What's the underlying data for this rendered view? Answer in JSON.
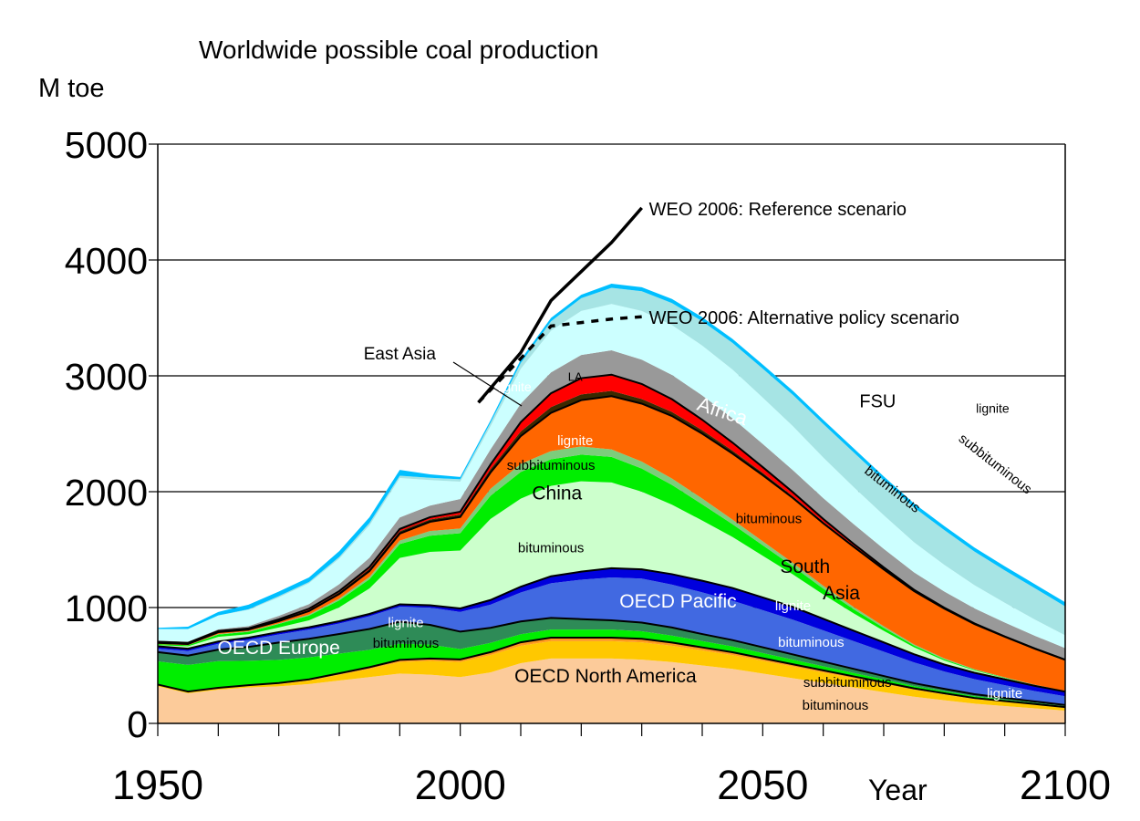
{
  "chart_data": {
    "type": "area",
    "stacked": true,
    "title": "Worldwide possible coal production",
    "ylabel": "M toe",
    "xlabel": "Year",
    "xlim": [
      1950,
      2100
    ],
    "ylim": [
      0,
      5000
    ],
    "x_ticks": [
      1950,
      2000,
      2050,
      2100
    ],
    "y_ticks": [
      0,
      1000,
      2000,
      3000,
      4000,
      5000
    ],
    "grid": "horizontal",
    "x": [
      1950,
      1955,
      1960,
      1965,
      1970,
      1975,
      1980,
      1985,
      1990,
      1995,
      2000,
      2005,
      2010,
      2015,
      2020,
      2025,
      2030,
      2035,
      2040,
      2045,
      2050,
      2055,
      2060,
      2065,
      2070,
      2075,
      2080,
      2085,
      2090,
      2095,
      2100
    ],
    "series": [
      {
        "id": "na-bituminous",
        "color": "#fccb9a",
        "values": [
          320,
          260,
          290,
          310,
          320,
          340,
          370,
          400,
          430,
          420,
          400,
          440,
          520,
          560,
          560,
          560,
          550,
          530,
          500,
          470,
          430,
          390,
          350,
          310,
          270,
          230,
          200,
          170,
          150,
          130,
          110
        ]
      },
      {
        "id": "na-subbituminous",
        "color": "#ffc800",
        "values": [
          10,
          10,
          12,
          15,
          20,
          30,
          50,
          70,
          100,
          120,
          130,
          150,
          150,
          150,
          150,
          150,
          150,
          140,
          130,
          120,
          110,
          100,
          90,
          80,
          70,
          60,
          50,
          40,
          35,
          30,
          25
        ]
      },
      {
        "id": "na-lignite",
        "color": "#ff9a1e",
        "values": [
          5,
          5,
          5,
          5,
          8,
          10,
          12,
          15,
          18,
          20,
          22,
          25,
          30,
          30,
          30,
          30,
          30,
          28,
          26,
          24,
          22,
          20,
          18,
          16,
          14,
          12,
          10,
          9,
          8,
          7,
          6
        ]
      },
      {
        "id": "eu-bituminous",
        "color": "#00ee00",
        "values": [
          200,
          230,
          230,
          210,
          200,
          190,
          170,
          150,
          140,
          120,
          90,
          80,
          70,
          70,
          70,
          70,
          65,
          60,
          55,
          50,
          45,
          40,
          35,
          30,
          25,
          20,
          18,
          15,
          12,
          10,
          8
        ]
      },
      {
        "id": "eu-lignite",
        "color": "#2e8b57",
        "values": [
          80,
          80,
          100,
          120,
          150,
          160,
          170,
          180,
          190,
          170,
          150,
          130,
          110,
          100,
          90,
          80,
          75,
          70,
          60,
          55,
          50,
          45,
          40,
          35,
          30,
          25,
          20,
          18,
          15,
          12,
          10
        ]
      },
      {
        "id": "pacific-bituminous",
        "color": "#4169e1",
        "values": [
          30,
          40,
          50,
          60,
          70,
          80,
          90,
          110,
          130,
          150,
          170,
          200,
          250,
          300,
          340,
          370,
          380,
          370,
          360,
          340,
          320,
          300,
          270,
          240,
          210,
          180,
          150,
          130,
          110,
          90,
          75
        ]
      },
      {
        "id": "pacific-lignite",
        "color": "#0000dd",
        "values": [
          20,
          20,
          20,
          20,
          20,
          20,
          20,
          20,
          20,
          20,
          30,
          40,
          50,
          60,
          70,
          80,
          80,
          90,
          100,
          110,
          110,
          110,
          100,
          90,
          80,
          70,
          60,
          55,
          50,
          45,
          40
        ]
      },
      {
        "id": "china-bituminous",
        "color": "#ccffcc",
        "values": [
          10,
          20,
          40,
          30,
          40,
          60,
          120,
          220,
          400,
          460,
          500,
          700,
          760,
          780,
          780,
          740,
          670,
          600,
          520,
          440,
          360,
          280,
          210,
          150,
          100,
          60,
          35,
          20,
          10,
          5,
          2
        ]
      },
      {
        "id": "china-subbituminous",
        "color": "#00ee00",
        "values": [
          10,
          10,
          20,
          20,
          30,
          40,
          60,
          80,
          120,
          140,
          150,
          200,
          230,
          230,
          230,
          220,
          200,
          170,
          140,
          110,
          90,
          70,
          50,
          35,
          25,
          15,
          10,
          6,
          4,
          2,
          1
        ]
      },
      {
        "id": "china-lignite",
        "color": "#7ccd7c",
        "values": [
          0,
          0,
          5,
          5,
          5,
          10,
          15,
          20,
          30,
          40,
          40,
          60,
          70,
          70,
          70,
          65,
          60,
          55,
          50,
          40,
          35,
          30,
          25,
          20,
          15,
          10,
          8,
          5,
          4,
          3,
          2
        ]
      },
      {
        "id": "south-asia",
        "color": "#ff6600",
        "values": [
          10,
          10,
          15,
          15,
          20,
          30,
          40,
          50,
          60,
          80,
          100,
          140,
          240,
          330,
          400,
          460,
          500,
          540,
          560,
          570,
          570,
          560,
          540,
          520,
          490,
          460,
          430,
          390,
          350,
          310,
          270
        ]
      },
      {
        "id": "east-asia-lignite",
        "color": "#3a2a00",
        "values": [
          5,
          5,
          5,
          5,
          10,
          10,
          15,
          20,
          20,
          20,
          20,
          30,
          40,
          50,
          50,
          45,
          40,
          35,
          30,
          25,
          20,
          15,
          12,
          10,
          8,
          6,
          4,
          3,
          2,
          1,
          1
        ]
      },
      {
        "id": "latin-america",
        "color": "#ff0000",
        "values": [
          5,
          5,
          5,
          5,
          5,
          10,
          10,
          15,
          20,
          20,
          25,
          40,
          80,
          120,
          140,
          140,
          130,
          110,
          90,
          70,
          50,
          35,
          25,
          15,
          10,
          6,
          4,
          2,
          1,
          1,
          0
        ]
      },
      {
        "id": "africa",
        "color": "#999999",
        "values": [
          10,
          10,
          15,
          20,
          30,
          40,
          60,
          80,
          100,
          100,
          110,
          130,
          160,
          180,
          200,
          210,
          210,
          210,
          210,
          210,
          200,
          190,
          180,
          170,
          160,
          150,
          140,
          130,
          120,
          110,
          100
        ]
      },
      {
        "id": "fsu-bituminous",
        "color": "#ccffff",
        "values": [
          100,
          110,
          120,
          140,
          160,
          180,
          220,
          280,
          340,
          220,
          150,
          200,
          300,
          360,
          380,
          400,
          420,
          430,
          430,
          420,
          400,
          380,
          350,
          320,
          290,
          260,
          230,
          200,
          170,
          140,
          110
        ]
      },
      {
        "id": "fsu-subbituminous",
        "color": "#a6e4e4",
        "values": [
          0,
          0,
          0,
          5,
          10,
          10,
          15,
          20,
          20,
          20,
          20,
          30,
          50,
          80,
          110,
          140,
          170,
          190,
          210,
          230,
          250,
          270,
          290,
          300,
          300,
          300,
          300,
          290,
          280,
          270,
          250
        ]
      },
      {
        "id": "fsu-lignite",
        "color": "#00bfff",
        "values": [
          10,
          20,
          30,
          40,
          40,
          40,
          50,
          50,
          50,
          30,
          20,
          20,
          30,
          30,
          30,
          35,
          35,
          35,
          35,
          35,
          35,
          35,
          35,
          35,
          35,
          35,
          35,
          35,
          35,
          35,
          35
        ]
      }
    ],
    "overlay_lines": [
      {
        "name": "WEO 2006: Reference scenario",
        "style": "solid",
        "x": [
          2003,
          2010,
          2015,
          2020,
          2025,
          2030
        ],
        "y": [
          2770,
          3200,
          3650,
          3900,
          4150,
          4450
        ]
      },
      {
        "name": "WEO 2006: Alternative policy scenario",
        "style": "dashed",
        "x": [
          2003,
          2010,
          2015,
          2020,
          2025,
          2030
        ],
        "y": [
          2770,
          3150,
          3430,
          3460,
          3490,
          3510
        ]
      }
    ],
    "annotations": [
      {
        "text": "East Asia",
        "x": 1990,
        "y": 3140,
        "color": "#000000",
        "size": 19
      },
      {
        "text": "lignite",
        "x": 2009,
        "y": 2865,
        "color": "#ffffff",
        "size": 14
      },
      {
        "text": "LA",
        "x": 2019,
        "y": 2955,
        "color": "#000000",
        "size": 13
      },
      {
        "text": "lignite",
        "x": 2019,
        "y": 2400,
        "color": "#ffffff",
        "size": 15
      },
      {
        "text": "subbituminous",
        "x": 2015,
        "y": 2190,
        "color": "#000000",
        "size": 15
      },
      {
        "text": "China",
        "x": 2016,
        "y": 1935,
        "color": "#000000",
        "size": 21
      },
      {
        "text": "bituminous",
        "x": 2015,
        "y": 1475,
        "color": "#000000",
        "size": 15
      },
      {
        "text": "Africa",
        "x": 2043,
        "y": 2640,
        "color": "#ffffff",
        "size": 22,
        "rotate": 18
      },
      {
        "text": "FSU",
        "x": 2069,
        "y": 2730,
        "color": "#000000",
        "size": 20
      },
      {
        "text": "lignite",
        "x": 2088,
        "y": 2680,
        "color": "#000000",
        "size": 14
      },
      {
        "text": "subbituminous",
        "x": 2088,
        "y": 2210,
        "color": "#000000",
        "size": 15,
        "rotate": 38
      },
      {
        "text": "bituminous",
        "x": 2071,
        "y": 1990,
        "color": "#000000",
        "size": 15,
        "rotate": 38
      },
      {
        "text": "bituminous",
        "x": 2051,
        "y": 1730,
        "color": "#000000",
        "size": 15
      },
      {
        "text": "South",
        "x": 2057,
        "y": 1300,
        "color": "#000000",
        "size": 21
      },
      {
        "text": "Asia",
        "x": 2063,
        "y": 1070,
        "color": "#000000",
        "size": 21
      },
      {
        "text": "OECD Pacific",
        "x": 2036,
        "y": 1000,
        "color": "#ffffff",
        "size": 21
      },
      {
        "text": "lignite",
        "x": 2055,
        "y": 975,
        "color": "#ffffff",
        "size": 15
      },
      {
        "text": "bituminous",
        "x": 2058,
        "y": 660,
        "color": "#ffffff",
        "size": 15
      },
      {
        "text": "OECD Europe",
        "x": 1970,
        "y": 600,
        "color": "#ffffff",
        "size": 21
      },
      {
        "text": "lignite",
        "x": 1991,
        "y": 830,
        "color": "#ffffff",
        "size": 15
      },
      {
        "text": "bituminous",
        "x": 1991,
        "y": 655,
        "color": "#000000",
        "size": 15
      },
      {
        "text": "OECD North America",
        "x": 2024,
        "y": 355,
        "color": "#000000",
        "size": 21
      },
      {
        "text": "subbituminous",
        "x": 2064,
        "y": 315,
        "color": "#000000",
        "size": 15
      },
      {
        "text": "bituminous",
        "x": 2062,
        "y": 120,
        "color": "#000000",
        "size": 15
      },
      {
        "text": "lignite",
        "x": 2090,
        "y": 220,
        "color": "#ffffff",
        "size": 15
      }
    ]
  }
}
